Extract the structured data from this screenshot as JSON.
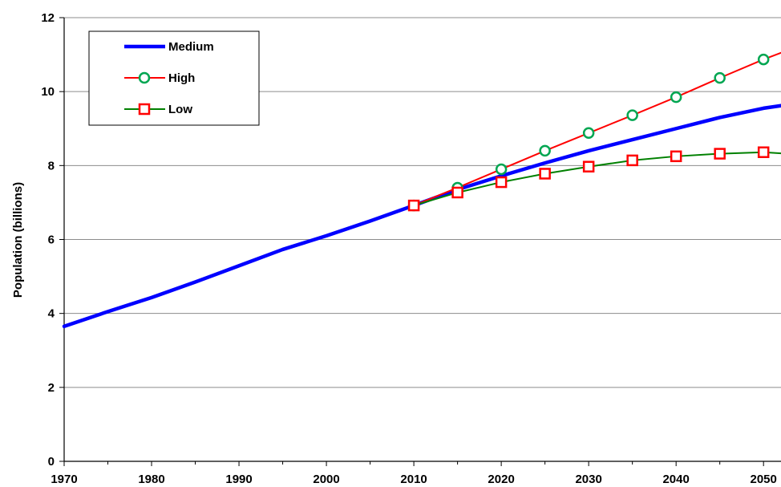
{
  "chart_data": {
    "type": "line",
    "title": "",
    "xlabel": "",
    "ylabel": "Population (billions)",
    "xlim": [
      1970,
      2052
    ],
    "ylim": [
      0,
      12
    ],
    "x_ticks": [
      "1970",
      "1980",
      "1990",
      "2000",
      "2010",
      "2020",
      "2030",
      "2040",
      "2050"
    ],
    "y_ticks": [
      "0",
      "2",
      "4",
      "6",
      "8",
      "10",
      "12"
    ],
    "grid": "horizontal",
    "legend_position": "top-left",
    "series": [
      {
        "name": "Medium",
        "color": "#0000ff",
        "marker": "none",
        "x": [
          1970,
          1975,
          1980,
          1985,
          1990,
          1995,
          2000,
          2005,
          2010,
          2015,
          2020,
          2025,
          2030,
          2035,
          2040,
          2045,
          2050,
          2052
        ],
        "y": [
          3.65,
          4.05,
          4.43,
          4.85,
          5.29,
          5.73,
          6.1,
          6.5,
          6.92,
          7.35,
          7.72,
          8.07,
          8.4,
          8.7,
          9.0,
          9.3,
          9.55,
          9.62
        ]
      },
      {
        "name": "High",
        "color": "#ff0000",
        "marker": "circle",
        "marker_color": "#00a651",
        "x": [
          2010,
          2015,
          2020,
          2025,
          2030,
          2035,
          2040,
          2045,
          2050,
          2052
        ],
        "y": [
          6.92,
          7.4,
          7.9,
          8.4,
          8.88,
          9.36,
          9.85,
          10.37,
          10.87,
          11.05
        ]
      },
      {
        "name": "Low",
        "color": "#008000",
        "marker": "square",
        "marker_color": "#ff0000",
        "x": [
          2010,
          2015,
          2020,
          2025,
          2030,
          2035,
          2040,
          2045,
          2050,
          2052
        ],
        "y": [
          6.92,
          7.27,
          7.55,
          7.78,
          7.97,
          8.14,
          8.25,
          8.32,
          8.36,
          8.33
        ]
      }
    ]
  }
}
